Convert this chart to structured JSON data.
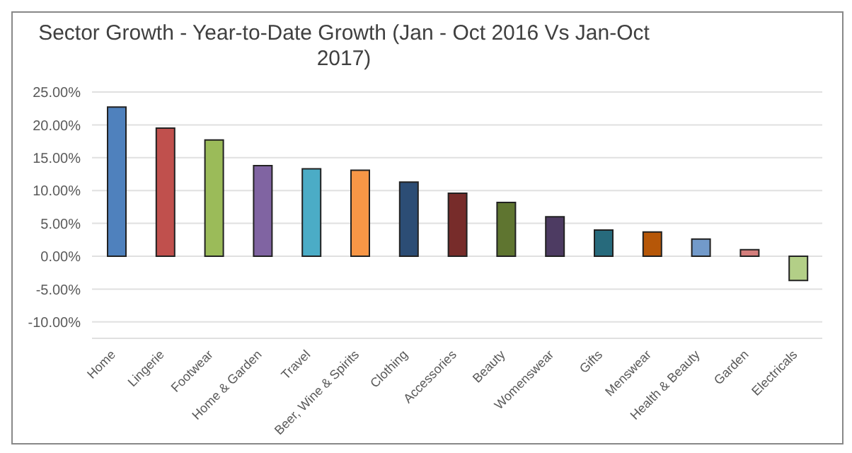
{
  "chart_data": {
    "type": "bar",
    "title": "Sector Growth - Year-to-Date Growth (Jan - Oct 2016 Vs Jan-Oct 2017)",
    "categories": [
      "Home",
      "Lingerie",
      "Footwear",
      "Home & Garden",
      "Travel",
      "Beer, Wine & Spirits",
      "Clothing",
      "Accessories",
      "Beauty",
      "Womenswear",
      "Gifts",
      "Menswear",
      "Health & Beauty",
      "Garden",
      "Electricals"
    ],
    "values": [
      22.7,
      19.5,
      17.7,
      13.8,
      13.3,
      13.1,
      11.3,
      9.6,
      8.2,
      6.0,
      4.0,
      3.7,
      2.6,
      1.0,
      -3.7
    ],
    "colors": [
      "#4f81bd",
      "#c0504d",
      "#9bbb59",
      "#8064a2",
      "#4bacc6",
      "#f79646",
      "#2c4d75",
      "#772c2a",
      "#5f7530",
      "#4d3b62",
      "#276a7c",
      "#b65708",
      "#729aca",
      "#d47e7c",
      "#b3cf87"
    ],
    "ylim": [
      -12.5,
      25
    ],
    "yticks": [
      {
        "value": -10,
        "label": "-10.00%"
      },
      {
        "value": -5,
        "label": "-5.00%"
      },
      {
        "value": 0,
        "label": "0.00%"
      },
      {
        "value": 5,
        "label": "5.00%"
      },
      {
        "value": 10,
        "label": "10.00%"
      },
      {
        "value": 15,
        "label": "15.00%"
      },
      {
        "value": 20,
        "label": "20.00%"
      },
      {
        "value": 25,
        "label": "25.00%"
      }
    ],
    "grid": "y"
  }
}
